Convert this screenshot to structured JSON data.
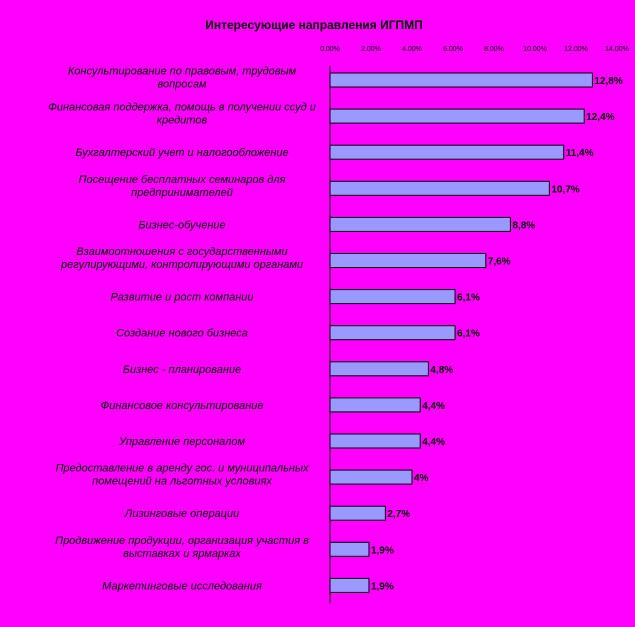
{
  "chart_data": {
    "type": "bar",
    "orientation": "horizontal",
    "title": "Интересующие направления ИГПМП",
    "xlim": [
      0,
      14
    ],
    "x_ticks": [
      "0.00%",
      "2.00%",
      "4.00%",
      "6.00%",
      "8.00%",
      "10.00%",
      "12.00%",
      "14.00%"
    ],
    "categories": [
      [
        "Консультирование по правовым, трудовым",
        "вопросам"
      ],
      [
        "Финансовая поддержка, помощь в получении ссуд и",
        "кредитов"
      ],
      [
        "Бухгалтерский учет и налогообложение"
      ],
      [
        "Посещение бесплатных семинаров для",
        "предпринимателей"
      ],
      [
        "Бизнес-обучение"
      ],
      [
        "Взаимоотношения с государственными",
        "регулирующими, контролирующими органами"
      ],
      [
        "Развитие и рост компании"
      ],
      [
        "Создание нового бизнеса"
      ],
      [
        "Бизнес - планирование"
      ],
      [
        "Финансовое консультирование"
      ],
      [
        "Управление персоналом"
      ],
      [
        "Предоставление в аренду гос. и муниципальных",
        "помещений на льготных условиях"
      ],
      [
        "Лизинговые операции"
      ],
      [
        "Продвижение продукции, организация участия в",
        "выставках и ярмарках"
      ],
      [
        "Маркетинговые исследования"
      ]
    ],
    "values": [
      12.8,
      12.4,
      11.4,
      10.7,
      8.8,
      7.6,
      6.1,
      6.1,
      4.8,
      4.4,
      4.4,
      4,
      2.7,
      1.9,
      1.9
    ],
    "data_labels": [
      "12,8%",
      "12,4%",
      "11,4%",
      "10,7%",
      "8,8%",
      "7,6%",
      "6,1%",
      "6,1%",
      "4,8%",
      "4,4%",
      "4,4%",
      "4%",
      "2,7%",
      "1,9%",
      "1,9%"
    ],
    "colors": {
      "background": "#ff00ff",
      "bar": "#9999ff",
      "bar_border": "#000000"
    },
    "legend": "none",
    "grid": false
  }
}
